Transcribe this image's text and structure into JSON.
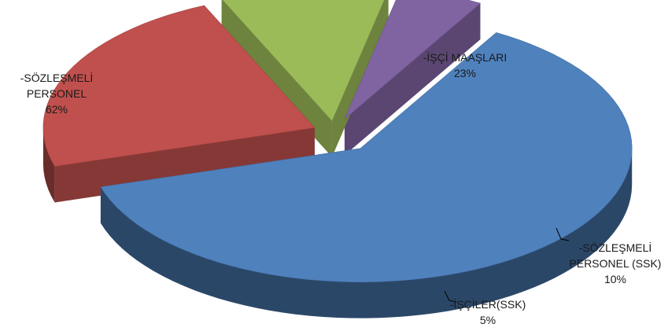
{
  "chart_data": {
    "type": "pie",
    "title": "",
    "slices": [
      {
        "label_lines": [
          "-SÖZLEŞMELİ",
          "PERSONEL"
        ],
        "value": 62,
        "value_label": "62%",
        "color": "#4f81bd"
      },
      {
        "label_lines": [
          "-İŞÇİ MAAŞLARI"
        ],
        "value": 23,
        "value_label": "23%",
        "color": "#c0504d"
      },
      {
        "label_lines": [
          "-SÖZLEŞMELİ",
          "PERSONEL (SSK)"
        ],
        "value": 10,
        "value_label": "10%",
        "color": "#9bbb59"
      },
      {
        "label_lines": [
          "-İŞÇİLER(SSK)"
        ],
        "value": 5,
        "value_label": "5%",
        "color": "#8064a2"
      }
    ],
    "exploded": true,
    "three_d": true,
    "legend": "none"
  }
}
